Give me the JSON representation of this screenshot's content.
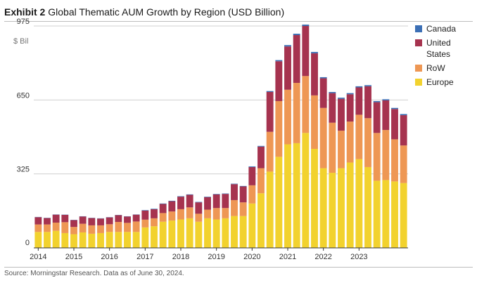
{
  "header": {
    "title_lead": "Exhibit 2",
    "title_rest": " Global Thematic AUM Growth by Region (USD Billion)"
  },
  "source_note": "Source: Morningstar Research. Data as of June 30, 2024.",
  "chart_data": {
    "type": "bar",
    "stacked": true,
    "title": "Global Thematic AUM Growth by Region (USD Billion)",
    "ylabel": "$ Bil",
    "ylim": [
      0,
      975
    ],
    "yticks": [
      0,
      325,
      650,
      975
    ],
    "grid": true,
    "legend_position": "right",
    "x_tick_labels": [
      "2014",
      "2015",
      "2016",
      "2017",
      "2018",
      "2019",
      "2020",
      "2021",
      "2022",
      "2023"
    ],
    "x_tick_start_index": 0,
    "x_tick_step": 4,
    "categories": [
      "2014 Q1",
      "2014 Q2",
      "2014 Q3",
      "2014 Q4",
      "2015 Q1",
      "2015 Q2",
      "2015 Q3",
      "2015 Q4",
      "2016 Q1",
      "2016 Q2",
      "2016 Q3",
      "2016 Q4",
      "2017 Q1",
      "2017 Q2",
      "2017 Q3",
      "2017 Q4",
      "2018 Q1",
      "2018 Q2",
      "2018 Q3",
      "2018 Q4",
      "2019 Q1",
      "2019 Q2",
      "2019 Q3",
      "2019 Q4",
      "2020 Q1",
      "2020 Q2",
      "2020 Q3",
      "2020 Q4",
      "2021 Q1",
      "2021 Q2",
      "2021 Q3",
      "2021 Q4",
      "2022 Q1",
      "2022 Q2",
      "2022 Q3",
      "2022 Q4",
      "2023 Q1",
      "2023 Q2",
      "2023 Q3",
      "2023 Q4",
      "2024 Q1",
      "2024 Q2"
    ],
    "series": [
      {
        "name": "Europe",
        "color": "#f2d22e",
        "values": [
          70,
          70,
          75,
          65,
          60,
          68,
          62,
          65,
          70,
          70,
          70,
          70,
          90,
          95,
          115,
          120,
          125,
          130,
          115,
          130,
          125,
          130,
          140,
          140,
          195,
          240,
          335,
          400,
          455,
          460,
          505,
          435,
          350,
          330,
          350,
          375,
          390,
          355,
          295,
          298,
          292,
          285
        ]
      },
      {
        "name": "RoW",
        "color": "#ee9754",
        "values": [
          33,
          33,
          36,
          48,
          32,
          38,
          37,
          34,
          34,
          44,
          40,
          46,
          34,
          35,
          38,
          40,
          45,
          48,
          35,
          38,
          50,
          45,
          70,
          60,
          80,
          110,
          175,
          245,
          240,
          265,
          250,
          235,
          265,
          220,
          165,
          180,
          195,
          215,
          210,
          220,
          185,
          165
        ]
      },
      {
        "name": "United States",
        "color": "#a6334f",
        "values": [
          32,
          28,
          35,
          32,
          30,
          32,
          32,
          30,
          30,
          30,
          28,
          30,
          40,
          40,
          40,
          45,
          55,
          55,
          50,
          55,
          60,
          62,
          70,
          70,
          80,
          95,
          175,
          175,
          190,
          210,
          220,
          185,
          130,
          130,
          140,
          120,
          120,
          140,
          135,
          130,
          133,
          133
        ]
      },
      {
        "name": "Canada",
        "color": "#3b6fb5",
        "values": [
          1,
          1,
          1,
          1,
          1,
          1,
          1,
          1,
          1,
          1,
          1,
          1,
          2,
          2,
          2,
          2,
          2,
          2,
          2,
          2,
          2,
          2,
          2,
          2,
          3,
          3,
          4,
          5,
          6,
          6,
          6,
          6,
          5,
          5,
          5,
          5,
          5,
          5,
          5,
          5,
          5,
          5
        ]
      }
    ]
  },
  "legend": {
    "order": [
      "Canada",
      "United States",
      "RoW",
      "Europe"
    ],
    "labels": {
      "Canada": "Canada",
      "United States": "United States",
      "RoW": "RoW",
      "Europe": "Europe"
    }
  }
}
